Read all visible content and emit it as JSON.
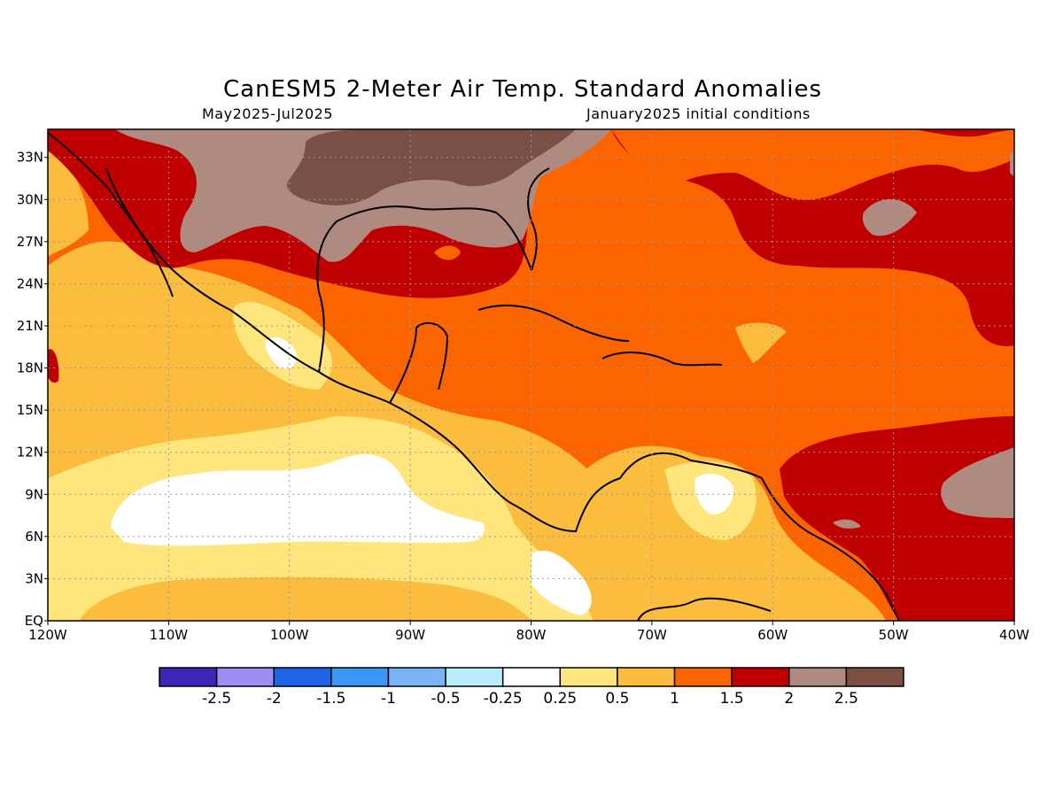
{
  "title": "CanESM5 2-Meter Air Temp. Standard Anomalies",
  "subtitle_left": "May2025-Jul2025",
  "subtitle_right": "January2025 initial conditions",
  "map": {
    "lon_range": [
      -120,
      -40
    ],
    "lat_range": [
      0,
      35
    ],
    "lat_labels": [
      "33N",
      "30N",
      "27N",
      "24N",
      "21N",
      "18N",
      "15N",
      "12N",
      "9N",
      "6N",
      "3N",
      "EQ"
    ],
    "lat_values": [
      33,
      30,
      27,
      24,
      21,
      18,
      15,
      12,
      9,
      6,
      3,
      0
    ],
    "lon_labels": [
      "120W",
      "110W",
      "100W",
      "90W",
      "80W",
      "70W",
      "60W",
      "50W",
      "40W"
    ],
    "lon_values": [
      -120,
      -110,
      -100,
      -90,
      -80,
      -70,
      -60,
      -50,
      -40
    ],
    "grid": true
  },
  "colorbar": {
    "colors": [
      "#3f24b8",
      "#a08cf5",
      "#1f64e6",
      "#3c96f5",
      "#78b4f7",
      "#b8ecfc",
      "#ffffff",
      "#fee67c",
      "#fcbc3e",
      "#fc6400",
      "#c00000",
      "#ae8a80",
      "#7a4f44"
    ],
    "labels": [
      "-2.5",
      "-2",
      "-1.5",
      "-1",
      "-0.5",
      "-0.25",
      "0.25",
      "0.5",
      "1",
      "1.5",
      "2",
      "2.5"
    ]
  }
}
